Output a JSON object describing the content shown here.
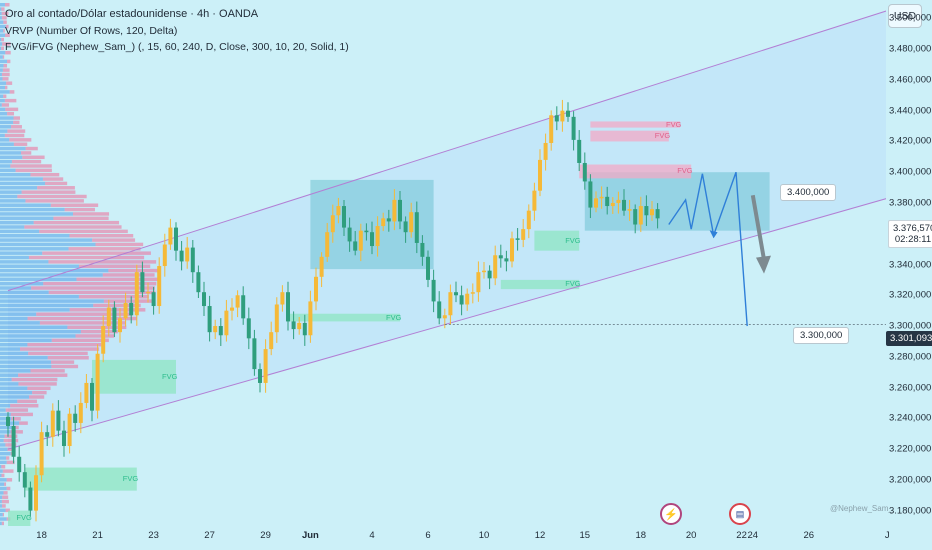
{
  "legend": {
    "title": "Oro al contado/Dólar estadounidense · 4h · OANDA",
    "vrvp": "VRVP (Number Of Rows, 120, Delta)",
    "fvg": "FVG/iFVG (Nephew_Sam_) (, 15, 60, 240, D, Close, 300, 10, 20, Solid, 1)"
  },
  "currency_button": "USD",
  "current_price": {
    "value": "3.376,570",
    "countdown": "02:28:11"
  },
  "marked_price": "3.301,093",
  "callouts": {
    "resistance": "3.400,000",
    "target": "3.300,000"
  },
  "fvg_label": "FVG",
  "events": {
    "earnings_icon": "lightning-icon",
    "us_event_icon": "us-flag-icon"
  },
  "author": "@Nephew_Sam_",
  "colors": {
    "background": "#ccf0f8",
    "up_candle": "#f5b938",
    "down_candle": "#2f9e7d",
    "channel_line": "#b27fd4",
    "channel_fill": "#bfe3fa",
    "box_fill": "#76c6d6",
    "fvg_green": "#8ee6c2",
    "fvg_red": "#f3a9c6",
    "projection": "#2f7fd8"
  },
  "chart_data": {
    "type": "candlestick",
    "ylim": [
      3170,
      3510
    ],
    "y_ticks": [
      "3.180,000",
      "3.200,000",
      "3.220,000",
      "3.240,000",
      "3.260,000",
      "3.280,000",
      "3.300,000",
      "3.320,000",
      "3.340,000",
      "3.360,000",
      "3.380,000",
      "3.400,000",
      "3.420,000",
      "3.440,000",
      "3.460,000",
      "3.480,000",
      "3.500,000"
    ],
    "y_tick_values": [
      3180,
      3200,
      3220,
      3240,
      3260,
      3280,
      3300,
      3320,
      3340,
      3360,
      3380,
      3400,
      3420,
      3440,
      3460,
      3480,
      3500
    ],
    "x_ticks": [
      {
        "label": "18",
        "bar": 6
      },
      {
        "label": "21",
        "bar": 16
      },
      {
        "label": "23",
        "bar": 26
      },
      {
        "label": "27",
        "bar": 36
      },
      {
        "label": "29",
        "bar": 46
      },
      {
        "label": "Jun",
        "bar": 54,
        "bold": true
      },
      {
        "label": "4",
        "bar": 65
      },
      {
        "label": "6",
        "bar": 75
      },
      {
        "label": "10",
        "bar": 85
      },
      {
        "label": "12",
        "bar": 95
      },
      {
        "label": "15",
        "bar": 103
      },
      {
        "label": "18",
        "bar": 113
      },
      {
        "label": "20",
        "bar": 122
      },
      {
        "label": "22",
        "bar": 131
      },
      {
        "label": "24",
        "bar": 133
      },
      {
        "label": "26",
        "bar": 143
      },
      {
        "label": "J",
        "bar": 157
      }
    ],
    "closes": [
      3235,
      3215,
      3205,
      3195,
      3180,
      3203,
      3231,
      3228,
      3245,
      3232,
      3222,
      3243,
      3237,
      3250,
      3263,
      3245,
      3282,
      3300,
      3312,
      3296,
      3305,
      3315,
      3307,
      3335,
      3322,
      3322,
      3313,
      3339,
      3353,
      3364,
      3349,
      3342,
      3351,
      3335,
      3322,
      3313,
      3296,
      3300,
      3294,
      3310,
      3312,
      3320,
      3305,
      3292,
      3272,
      3263,
      3285,
      3296,
      3314,
      3322,
      3303,
      3298,
      3302,
      3294,
      3316,
      3332,
      3345,
      3361,
      3372,
      3378,
      3364,
      3355,
      3349,
      3362,
      3361,
      3352,
      3365,
      3370,
      3368,
      3382,
      3368,
      3361,
      3374,
      3354,
      3345,
      3330,
      3316,
      3305,
      3307,
      3322,
      3320,
      3314,
      3321,
      3322,
      3335,
      3336,
      3331,
      3346,
      3344,
      3342,
      3357,
      3356,
      3363,
      3375,
      3388,
      3408,
      3419,
      3437,
      3433,
      3440,
      3436,
      3421,
      3406,
      3394,
      3377,
      3383,
      3384,
      3378,
      3380,
      3382,
      3375,
      3376,
      3366,
      3378,
      3372,
      3376,
      3370
    ],
    "volume_profile_poc": 3331,
    "channel": {
      "upper": [
        [
          0,
          3323
        ],
        [
          157,
          3505
        ]
      ],
      "lower": [
        [
          0,
          3220
        ],
        [
          157,
          3383
        ]
      ]
    },
    "zones": [
      {
        "kind": "consolidation",
        "x": [
          54,
          76
        ],
        "y": [
          3337,
          3395
        ]
      },
      {
        "kind": "consolidation",
        "x": [
          103,
          136
        ],
        "y": [
          3362,
          3400
        ]
      }
    ],
    "fvg_zones": [
      {
        "color": "green",
        "x": [
          3,
          23
        ],
        "y": [
          3193,
          3208
        ]
      },
      {
        "color": "green",
        "x": [
          15,
          30
        ],
        "y": [
          3256,
          3278
        ]
      },
      {
        "color": "green",
        "x": [
          50,
          70
        ],
        "y": [
          3303,
          3308
        ]
      },
      {
        "color": "green",
        "x": [
          0,
          4
        ],
        "y": [
          3170,
          3180
        ]
      },
      {
        "color": "green",
        "x": [
          94,
          102
        ],
        "y": [
          3349,
          3362
        ]
      },
      {
        "color": "green",
        "x": [
          88,
          102
        ],
        "y": [
          3324,
          3330
        ]
      },
      {
        "color": "red",
        "x": [
          102,
          122
        ],
        "y": [
          3396,
          3405
        ]
      },
      {
        "color": "red",
        "x": [
          104,
          118
        ],
        "y": [
          3420,
          3427
        ]
      },
      {
        "color": "red",
        "x": [
          104,
          120
        ],
        "y": [
          3429,
          3433
        ]
      }
    ],
    "projection_path": [
      [
        118,
        3366
      ],
      [
        121,
        3382
      ],
      [
        122,
        3363
      ],
      [
        124,
        3399
      ],
      [
        126,
        3359
      ],
      [
        130,
        3400
      ],
      [
        132,
        3300
      ]
    ],
    "forecast_arrow": [
      [
        133,
        3385
      ],
      [
        135,
        3338
      ]
    ],
    "hline": 3301
  }
}
